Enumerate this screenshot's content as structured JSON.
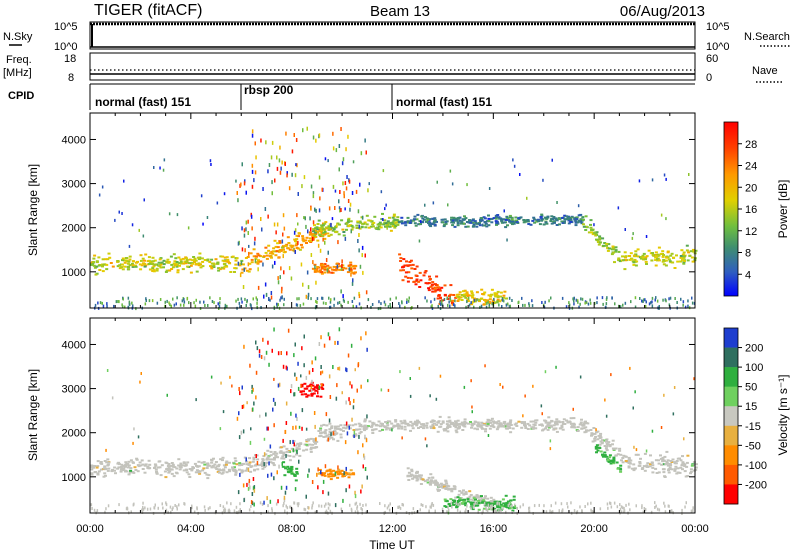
{
  "header": {
    "station": "TIGER (fitACF)",
    "beam": "Beam 13",
    "date": "06/Aug/2013"
  },
  "labels": {
    "nsky": "N.Sky",
    "nsearch": "N.Search",
    "freq": "Freq.",
    "freq_unit": "[MHz]",
    "cpid": "CPID",
    "nave": "Nave",
    "slant_range": "Slant Range [km]",
    "time": "Time UT"
  },
  "noise_panel": {
    "left_ticks": [
      "10^5",
      "10^0"
    ],
    "right_ticks": [
      "10^5",
      "10^0"
    ]
  },
  "freq_panel": {
    "left_ticks": [
      "18",
      "8"
    ],
    "right_ticks": [
      "60",
      "0"
    ]
  },
  "cpid_segments": [
    {
      "label": "normal (fast) 151",
      "start": 0,
      "end": 6
    },
    {
      "label": "rbsp 200",
      "start": 6,
      "end": 12
    },
    {
      "label": "normal (fast) 151",
      "start": 12,
      "end": 24
    }
  ],
  "power_colorbar": {
    "title": "Power [dB]",
    "ticks": [
      "28",
      "24",
      "20",
      "16",
      "12",
      "8",
      "4"
    ],
    "colors": [
      "#ff0000",
      "#ff5a00",
      "#ff9900",
      "#e0d000",
      "#7fcf3f",
      "#3f9a6f",
      "#2f5fbf",
      "#0000ff"
    ]
  },
  "velocity_colorbar": {
    "title": "Velocity [m s⁻¹]",
    "ticks": [
      "200",
      "100",
      "50",
      "15",
      "-15",
      "-50",
      "-100",
      "-200"
    ],
    "colors": [
      "#1e3ecf",
      "#2f6f5f",
      "#2faf3f",
      "#6fd05f",
      "#c8c8c0",
      "#e8b040",
      "#ff8c00",
      "#ff5a00",
      "#ff0000"
    ]
  },
  "chart_data": {
    "type": "heatmap",
    "xlabel": "Time UT",
    "ylabel": "Slant Range [km]",
    "xlim": [
      0,
      24
    ],
    "ylim": [
      180,
      4600
    ],
    "x_ticks": [
      "00:00",
      "04:00",
      "08:00",
      "12:00",
      "16:00",
      "20:00",
      "00:00"
    ],
    "x_tick_values": [
      0,
      4,
      8,
      12,
      16,
      20,
      24
    ],
    "y_ticks": [
      1000,
      2000,
      3000,
      4000
    ],
    "panels": [
      {
        "name": "Power",
        "unit": "dB",
        "range": [
          0,
          30
        ],
        "scatter_bands": [
          {
            "t_start": 0.0,
            "t_end": 6.0,
            "range_start_km": 1200,
            "range_end_km": 1200,
            "width_km": 280,
            "value": 16
          },
          {
            "t_start": 6.0,
            "t_end": 9.5,
            "range_start_km": 1200,
            "range_end_km": 2000,
            "width_km": 300,
            "value": 20
          },
          {
            "t_start": 8.8,
            "t_end": 12.2,
            "range_start_km": 2000,
            "range_end_km": 2150,
            "width_km": 250,
            "value": 14
          },
          {
            "t_start": 12.2,
            "t_end": 19.5,
            "range_start_km": 2150,
            "range_end_km": 2200,
            "width_km": 180,
            "value": 8
          },
          {
            "t_start": 19.5,
            "t_end": 21.0,
            "range_start_km": 2200,
            "range_end_km": 1300,
            "width_km": 250,
            "value": 14
          },
          {
            "t_start": 21.0,
            "t_end": 24.0,
            "range_start_km": 1300,
            "range_end_km": 1400,
            "width_km": 300,
            "value": 16
          },
          {
            "t_start": 12.2,
            "t_end": 14.5,
            "range_start_km": 1200,
            "range_end_km": 300,
            "width_km": 380,
            "value": 26
          },
          {
            "t_start": 14.5,
            "t_end": 16.5,
            "range_start_km": 450,
            "range_end_km": 450,
            "width_km": 220,
            "value": 18
          },
          {
            "t_start": 8.8,
            "t_end": 10.5,
            "range_start_km": 1100,
            "range_end_km": 1100,
            "width_km": 200,
            "value": 22
          }
        ]
      },
      {
        "name": "Velocity",
        "unit": "m s^-1",
        "range": [
          -200,
          200
        ],
        "scatter_bands": [
          {
            "t_start": 0.0,
            "t_end": 6.0,
            "range_start_km": 1250,
            "range_end_km": 1250,
            "width_km": 300,
            "value": 0
          },
          {
            "t_start": 6.0,
            "t_end": 9.0,
            "range_start_km": 1250,
            "range_end_km": 1800,
            "width_km": 280,
            "value": 0
          },
          {
            "t_start": 9.0,
            "t_end": 12.0,
            "range_start_km": 2000,
            "range_end_km": 2200,
            "width_km": 250,
            "value": 0
          },
          {
            "t_start": 12.0,
            "t_end": 19.5,
            "range_start_km": 2200,
            "range_end_km": 2200,
            "width_km": 200,
            "value": 0
          },
          {
            "t_start": 19.5,
            "t_end": 21.5,
            "range_start_km": 2200,
            "range_end_km": 1300,
            "width_km": 250,
            "value": 0
          },
          {
            "t_start": 21.5,
            "t_end": 24.0,
            "range_start_km": 1300,
            "range_end_km": 1300,
            "width_km": 350,
            "value": 0
          },
          {
            "t_start": 12.5,
            "t_end": 16.0,
            "range_start_km": 1100,
            "range_end_km": 400,
            "width_km": 200,
            "value": 0
          },
          {
            "t_start": 14.0,
            "t_end": 16.8,
            "range_start_km": 450,
            "range_end_km": 400,
            "width_km": 200,
            "value": 40
          },
          {
            "t_start": 7.5,
            "t_end": 8.2,
            "range_start_km": 1200,
            "range_end_km": 1100,
            "width_km": 250,
            "value": 40
          },
          {
            "t_start": 20.0,
            "t_end": 21.0,
            "range_start_km": 1700,
            "range_end_km": 1200,
            "width_km": 150,
            "value": 40
          },
          {
            "t_start": 8.3,
            "t_end": 9.2,
            "range_start_km": 3000,
            "range_end_km": 3000,
            "width_km": 300,
            "value": -180
          },
          {
            "t_start": 9.0,
            "t_end": 10.4,
            "range_start_km": 1100,
            "range_end_km": 1100,
            "width_km": 150,
            "value": -60
          }
        ]
      }
    ]
  }
}
